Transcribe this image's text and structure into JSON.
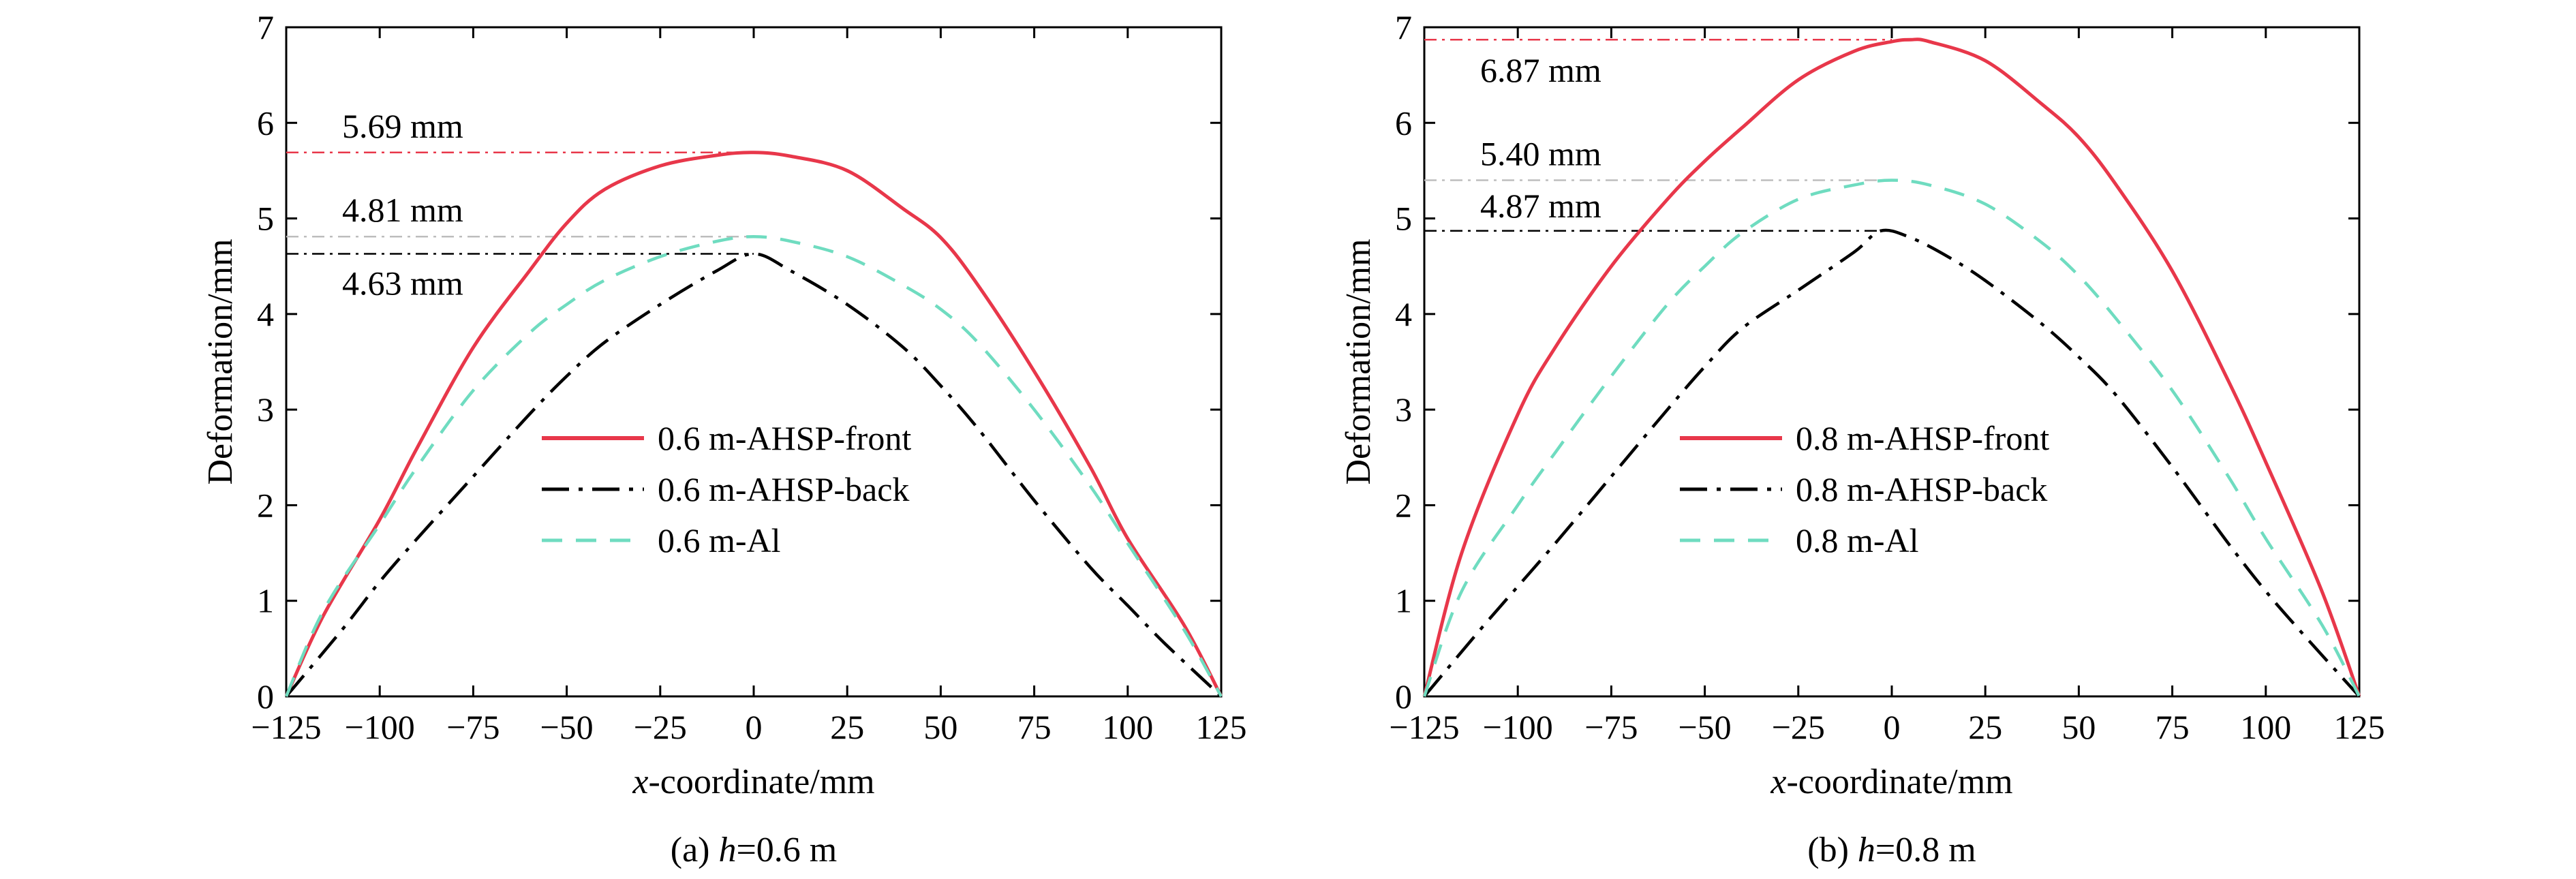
{
  "chart_data": [
    {
      "type": "line",
      "caption": {
        "prefix": "(a) ",
        "var": "h",
        "suffix": "=0.6 m"
      },
      "xlabel": {
        "var": "x",
        "rest": "-coordinate/mm"
      },
      "ylabel": "Deformation/mm",
      "xlim": [
        -125,
        125
      ],
      "ylim": [
        0,
        7
      ],
      "xticks": [
        "−125",
        "−100",
        "−75",
        "−50",
        "−25",
        "0",
        "25",
        "50",
        "75",
        "100",
        "125"
      ],
      "xtick_values": [
        -125,
        -100,
        -75,
        -50,
        -25,
        0,
        25,
        50,
        75,
        100,
        125
      ],
      "yticks": [
        "0",
        "1",
        "2",
        "3",
        "4",
        "5",
        "6",
        "7"
      ],
      "ytick_values": [
        0,
        1,
        2,
        3,
        4,
        5,
        6,
        7
      ],
      "grid": false,
      "legend_position": "center-right",
      "series": [
        {
          "name": "0.6 m-AHSP-front",
          "color": "#e8374a",
          "style": "solid",
          "x": [
            -125,
            -115,
            -100,
            -90,
            -75,
            -60,
            -50,
            -40,
            -25,
            -10,
            0,
            10,
            25,
            40,
            50,
            60,
            75,
            90,
            100,
            115,
            125
          ],
          "y": [
            0,
            0.85,
            1.85,
            2.6,
            3.65,
            4.45,
            4.95,
            5.3,
            5.55,
            5.66,
            5.69,
            5.65,
            5.5,
            5.1,
            4.8,
            4.3,
            3.4,
            2.4,
            1.65,
            0.75,
            0
          ]
        },
        {
          "name": "0.6 m-AHSP-back",
          "color": "#000000",
          "style": "dashdot",
          "x": [
            -125,
            -110,
            -100,
            -90,
            -75,
            -60,
            -50,
            -40,
            -25,
            -10,
            0,
            10,
            25,
            40,
            50,
            60,
            75,
            90,
            100,
            110,
            125
          ],
          "y": [
            0,
            0.7,
            1.2,
            1.65,
            2.3,
            2.95,
            3.35,
            3.7,
            4.1,
            4.45,
            4.63,
            4.45,
            4.1,
            3.65,
            3.25,
            2.8,
            2.05,
            1.35,
            0.95,
            0.55,
            0
          ]
        },
        {
          "name": "0.6 m-Al",
          "color": "#6fdcc0",
          "style": "dashed",
          "x": [
            -125,
            -115,
            -100,
            -90,
            -75,
            -60,
            -50,
            -40,
            -25,
            -10,
            0,
            10,
            25,
            40,
            50,
            60,
            75,
            90,
            100,
            115,
            125
          ],
          "y": [
            0,
            0.9,
            1.8,
            2.4,
            3.2,
            3.8,
            4.1,
            4.35,
            4.6,
            4.76,
            4.81,
            4.76,
            4.6,
            4.3,
            4.05,
            3.7,
            3.0,
            2.2,
            1.6,
            0.7,
            0
          ]
        }
      ],
      "annotations": [
        {
          "text": "5.69 mm",
          "y": 5.69,
          "color": "#e8374a"
        },
        {
          "text": "4.81 mm",
          "y": 4.81,
          "color": "#bdbdbd"
        },
        {
          "text": "4.63 mm",
          "y": 4.63,
          "color": "#000000"
        }
      ]
    },
    {
      "type": "line",
      "caption": {
        "prefix": "(b) ",
        "var": "h",
        "suffix": "=0.8 m"
      },
      "xlabel": {
        "var": "x",
        "rest": "-coordinate/mm"
      },
      "ylabel": "Deformation/mm",
      "xlim": [
        -125,
        125
      ],
      "ylim": [
        0,
        7
      ],
      "xticks": [
        "−125",
        "−100",
        "−75",
        "−50",
        "−25",
        "0",
        "25",
        "50",
        "75",
        "100",
        "125"
      ],
      "xtick_values": [
        -125,
        -100,
        -75,
        -50,
        -25,
        0,
        25,
        50,
        75,
        100,
        125
      ],
      "yticks": [
        "0",
        "1",
        "2",
        "3",
        "4",
        "5",
        "6",
        "7"
      ],
      "ytick_values": [
        0,
        1,
        2,
        3,
        4,
        5,
        6,
        7
      ],
      "grid": false,
      "legend_position": "center-right",
      "series": [
        {
          "name": "0.8 m-AHSP-front",
          "color": "#e8374a",
          "style": "solid",
          "x": [
            -125,
            -115,
            -100,
            -90,
            -75,
            -60,
            -50,
            -40,
            -25,
            -10,
            0,
            5,
            10,
            25,
            40,
            50,
            60,
            75,
            90,
            100,
            115,
            125
          ],
          "y": [
            0,
            1.5,
            2.95,
            3.65,
            4.5,
            5.2,
            5.6,
            5.95,
            6.45,
            6.75,
            6.85,
            6.87,
            6.85,
            6.65,
            6.2,
            5.85,
            5.35,
            4.45,
            3.3,
            2.45,
            1.1,
            0
          ]
        },
        {
          "name": "0.8 m-AHSP-back",
          "color": "#000000",
          "style": "dashdot",
          "x": [
            -125,
            -110,
            -100,
            -90,
            -75,
            -60,
            -50,
            -40,
            -25,
            -10,
            -3,
            5,
            15,
            25,
            40,
            50,
            60,
            75,
            90,
            100,
            110,
            125
          ],
          "y": [
            0,
            0.7,
            1.15,
            1.6,
            2.3,
            3.0,
            3.45,
            3.85,
            4.25,
            4.65,
            4.87,
            4.8,
            4.6,
            4.35,
            3.9,
            3.55,
            3.15,
            2.4,
            1.6,
            1.1,
            0.65,
            0
          ]
        },
        {
          "name": "0.8 m-Al",
          "color": "#6fdcc0",
          "style": "dashed",
          "x": [
            -125,
            -115,
            -100,
            -90,
            -75,
            -60,
            -50,
            -40,
            -25,
            -10,
            0,
            10,
            25,
            40,
            50,
            60,
            75,
            90,
            100,
            115,
            125
          ],
          "y": [
            0,
            1.1,
            2.0,
            2.55,
            3.35,
            4.1,
            4.5,
            4.85,
            5.2,
            5.35,
            5.4,
            5.35,
            5.15,
            4.75,
            4.4,
            3.95,
            3.2,
            2.3,
            1.65,
            0.75,
            0
          ]
        }
      ],
      "annotations": [
        {
          "text": "6.87 mm",
          "y": 6.87,
          "color": "#e8374a"
        },
        {
          "text": "5.40 mm",
          "y": 5.4,
          "color": "#bdbdbd"
        },
        {
          "text": "4.87 mm",
          "y": 4.87,
          "color": "#000000"
        }
      ]
    }
  ]
}
